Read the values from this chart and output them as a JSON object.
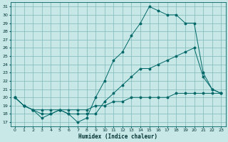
{
  "xlabel": "Humidex (Indice chaleur)",
  "bg_color": "#c8e8e8",
  "grid_color": "#80b8b8",
  "line_color": "#006868",
  "xlim": [
    -0.5,
    23.5
  ],
  "ylim": [
    16.5,
    31.5
  ],
  "xticks": [
    0,
    1,
    2,
    3,
    4,
    5,
    6,
    7,
    8,
    9,
    10,
    11,
    12,
    13,
    14,
    15,
    16,
    17,
    18,
    19,
    20,
    21,
    22,
    23
  ],
  "yticks": [
    17,
    18,
    19,
    20,
    21,
    22,
    23,
    24,
    25,
    26,
    27,
    28,
    29,
    30,
    31
  ],
  "line_bottom": {
    "x": [
      0,
      1,
      2,
      3,
      4,
      5,
      6,
      7,
      8,
      9,
      10,
      11,
      12,
      13,
      14,
      15,
      16,
      17,
      18,
      19,
      20,
      21,
      22,
      23
    ],
    "y": [
      20,
      19,
      18.5,
      18.5,
      18.5,
      18.5,
      18.5,
      18.5,
      18.5,
      19,
      19,
      19.5,
      19.5,
      20,
      20,
      20,
      20,
      20,
      20.5,
      20.5,
      20.5,
      20.5,
      20.5,
      20.5
    ]
  },
  "line_mid": {
    "x": [
      0,
      1,
      2,
      3,
      4,
      5,
      6,
      7,
      8,
      9,
      10,
      11,
      12,
      13,
      14,
      15,
      16,
      17,
      18,
      19,
      20,
      21,
      22,
      23
    ],
    "y": [
      20,
      19,
      18.5,
      18,
      18,
      18.5,
      18,
      18,
      18,
      18,
      19.5,
      20.5,
      21.5,
      22.5,
      23.5,
      23.5,
      24,
      24.5,
      25,
      25.5,
      26,
      22.5,
      21,
      20.5
    ]
  },
  "line_top": {
    "x": [
      0,
      1,
      2,
      3,
      4,
      5,
      6,
      7,
      8,
      9,
      10,
      11,
      12,
      13,
      14,
      15,
      16,
      17,
      18,
      19,
      20,
      21,
      22,
      23
    ],
    "y": [
      20,
      19,
      18.5,
      17.5,
      18,
      18.5,
      18,
      17,
      17.5,
      20,
      22,
      24.5,
      25.5,
      27.5,
      29,
      31,
      30.5,
      30,
      30,
      29,
      29,
      23,
      21,
      20.5
    ]
  }
}
